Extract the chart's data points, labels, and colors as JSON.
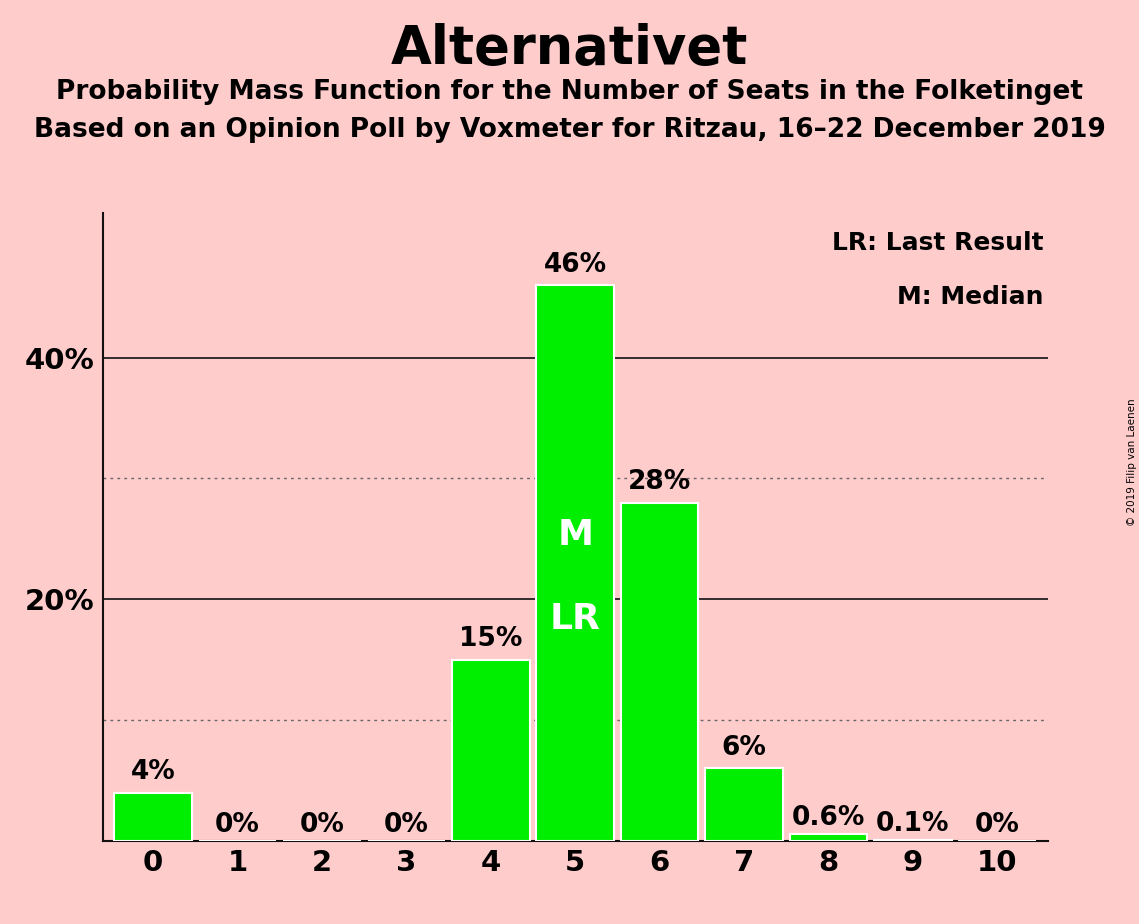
{
  "title": "Alternativet",
  "subtitle1": "Probability Mass Function for the Number of Seats in the Folketinget",
  "subtitle2": "Based on an Opinion Poll by Voxmeter for Ritzau, 16–22 December 2019",
  "copyright": "© 2019 Filip van Laenen",
  "legend_lr": "LR: Last Result",
  "legend_m": "M: Median",
  "categories": [
    0,
    1,
    2,
    3,
    4,
    5,
    6,
    7,
    8,
    9,
    10
  ],
  "values": [
    4,
    0,
    0,
    0,
    15,
    46,
    28,
    6,
    0.6,
    0.1,
    0
  ],
  "labels": [
    "4%",
    "0%",
    "0%",
    "0%",
    "15%",
    "46%",
    "28%",
    "6%",
    "0.6%",
    "0.1%",
    "0%"
  ],
  "bar_color": "#00ee00",
  "bar_edge_color": "white",
  "background_color": "#ffcccc",
  "title_fontsize": 38,
  "subtitle_fontsize": 19,
  "label_fontsize": 19,
  "tick_fontsize": 21,
  "median_seat": 5,
  "last_result_seat": 5,
  "median_label": "M",
  "lr_label": "LR",
  "ylim_max": 52,
  "solid_yticks": [
    0,
    20,
    40
  ],
  "dotted_yticks": [
    10,
    30
  ],
  "solid_color": "#111111",
  "dotted_color": "#666666"
}
